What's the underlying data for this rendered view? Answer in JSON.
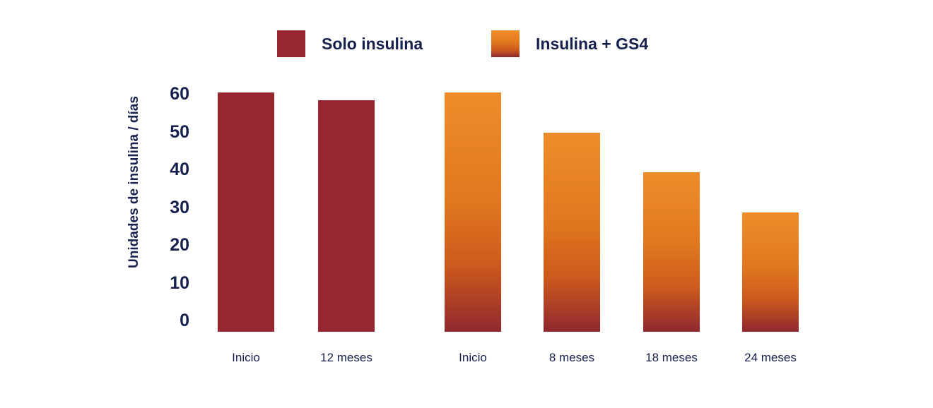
{
  "colors": {
    "background": "#ffffff",
    "text": "#16214d"
  },
  "chart_data": {
    "type": "bar",
    "title": "",
    "ylabel": "Unidades de insulina / días",
    "xlabel": "",
    "ylim": [
      0,
      60
    ],
    "yticks": [
      60,
      50,
      40,
      30,
      20,
      10,
      0
    ],
    "grid": false,
    "legend_position": "top-center",
    "categories": [
      "Inicio",
      "12 meses",
      "Inicio",
      "8 meses",
      "18 meses",
      "24 meses"
    ],
    "series": [
      {
        "name": "Solo insulina",
        "fill": "solid",
        "color": "#962731",
        "categories": [
          "Inicio",
          "12 meses"
        ],
        "values": [
          60,
          58
        ]
      },
      {
        "name": "Insulina + GS4",
        "fill": "gradient",
        "gradient": [
          "#ef8d2a",
          "#e0781f",
          "#cd5a1d",
          "#a63a27",
          "#8e2830"
        ],
        "categories": [
          "Inicio",
          "8 meses",
          "18 meses",
          "24 meses"
        ],
        "values": [
          60,
          50,
          40,
          30
        ]
      }
    ],
    "bars": [
      {
        "category": "Inicio",
        "value": 60,
        "series": "Solo insulina"
      },
      {
        "category": "12 meses",
        "value": 58,
        "series": "Solo insulina"
      },
      {
        "category": "Inicio",
        "value": 60,
        "series": "Insulina + GS4"
      },
      {
        "category": "8 meses",
        "value": 50,
        "series": "Insulina + GS4"
      },
      {
        "category": "18 meses",
        "value": 40,
        "series": "Insulina + GS4"
      },
      {
        "category": "24 meses",
        "value": 30,
        "series": "Insulina + GS4"
      }
    ]
  }
}
